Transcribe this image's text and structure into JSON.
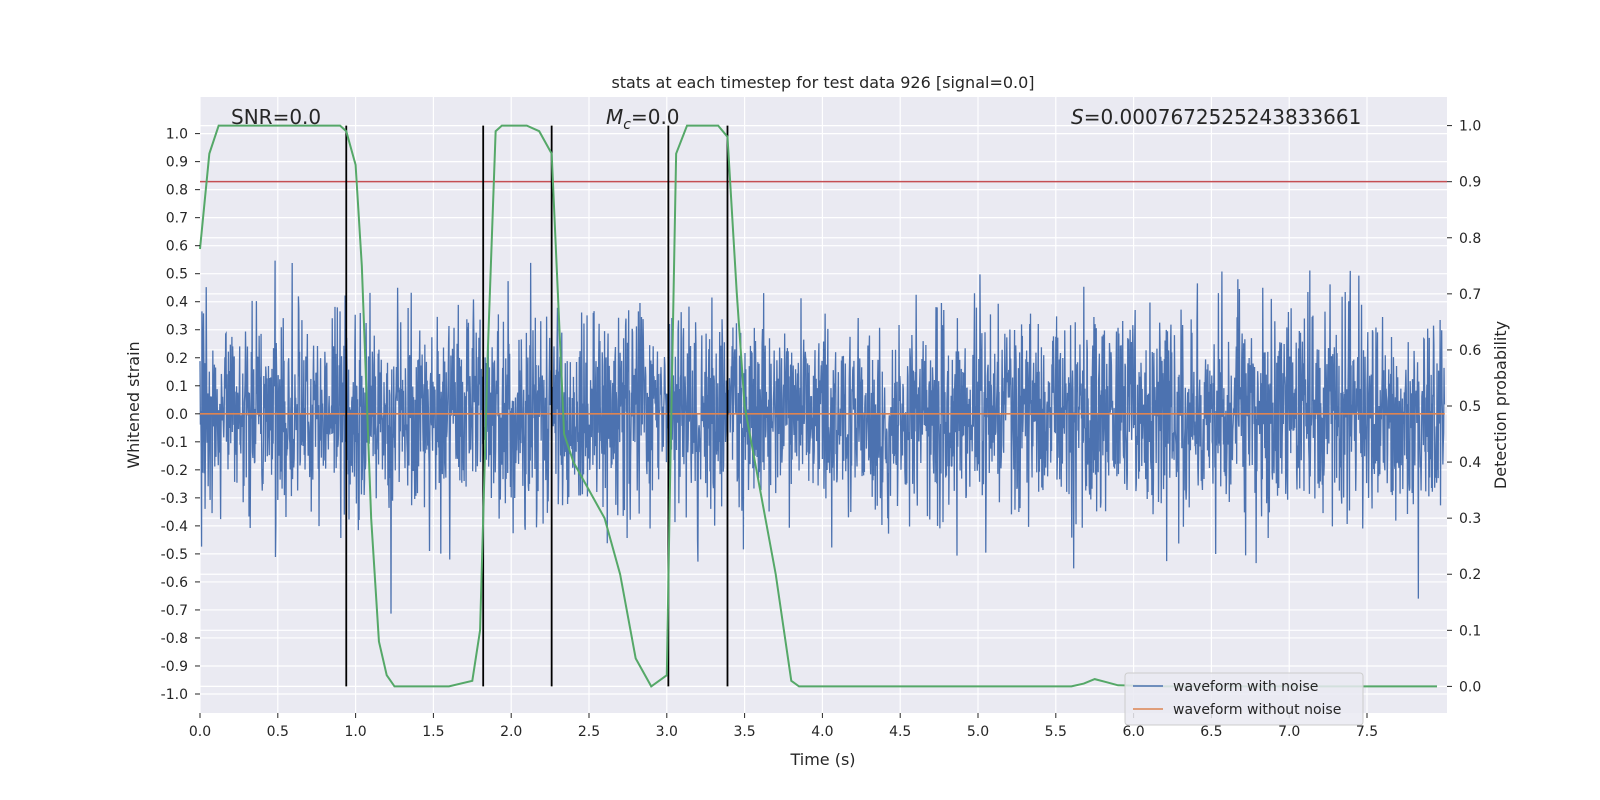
{
  "chart_data": {
    "type": "line",
    "title": "stats at each timestep for test data 926 [signal=0.0]",
    "xlabel": "Time (s)",
    "ylabel_left": "Whitened strain",
    "ylabel_right": "Detection probability",
    "xlim": [
      0.0,
      8.0
    ],
    "ylim_left": [
      -1.06,
      1.09
    ],
    "ylim_right": [
      -0.045,
      1.03
    ],
    "x_ticks": [
      "0.0",
      "0.5",
      "1.0",
      "1.5",
      "2.0",
      "2.5",
      "3.0",
      "3.5",
      "4.0",
      "4.5",
      "5.0",
      "5.5",
      "6.0",
      "6.5",
      "7.0",
      "7.5"
    ],
    "y_ticks_left": [
      "1.0",
      "0.9",
      "0.8",
      "0.7",
      "0.6",
      "0.5",
      "0.4",
      "0.3",
      "0.2",
      "0.1",
      "0.0",
      "-0.1",
      "-0.2",
      "-0.3",
      "-0.4",
      "-0.5",
      "-0.6",
      "-0.7",
      "-0.8",
      "-0.9",
      "-1.0"
    ],
    "y_ticks_right": [
      "1.0",
      "0.9",
      "0.8",
      "0.7",
      "0.6",
      "0.5",
      "0.4",
      "0.3",
      "0.2",
      "0.1",
      "0.0"
    ],
    "annotations": {
      "snr_label": "SNR",
      "snr_value": "=0.0",
      "mc_label": "M",
      "mc_sub": "c",
      "mc_value": "=0.0",
      "s_label": "S",
      "s_value": "=0.0007672525243833661"
    },
    "threshold_line": {
      "axis": "right",
      "value": 0.9,
      "color": "#c44e52"
    },
    "event_markers_x": [
      0.94,
      1.82,
      2.26,
      3.01,
      3.39
    ],
    "series": [
      {
        "name": "waveform with noise",
        "axis": "left",
        "color": "#4c72b0",
        "sample_rate": 400,
        "duration": 8.0,
        "noise_std": 0.18,
        "seed": 926
      },
      {
        "name": "waveform without noise",
        "axis": "left",
        "color": "#dd8452",
        "x": [
          0.0,
          8.0
        ],
        "y": [
          0.0,
          0.0
        ]
      },
      {
        "name": "detection probability",
        "axis": "right",
        "color": "#55a868",
        "x": [
          0.0,
          0.06,
          0.12,
          0.25,
          0.5,
          0.75,
          0.9,
          0.94,
          1.0,
          1.04,
          1.1,
          1.15,
          1.2,
          1.25,
          1.4,
          1.6,
          1.75,
          1.8,
          1.85,
          1.9,
          1.94,
          2.0,
          2.1,
          2.18,
          2.26,
          2.3,
          2.34,
          2.4,
          2.5,
          2.6,
          2.7,
          2.8,
          2.9,
          3.0,
          3.02,
          3.06,
          3.13,
          3.2,
          3.33,
          3.39,
          3.45,
          3.5,
          3.6,
          3.7,
          3.8,
          3.85,
          4.2,
          5.6,
          5.68,
          5.75,
          5.82,
          5.9,
          6.2,
          7.95
        ],
        "y": [
          0.78,
          0.95,
          1.0,
          1.0,
          1.0,
          1.0,
          1.0,
          0.99,
          0.93,
          0.75,
          0.3,
          0.08,
          0.02,
          0.0,
          0.0,
          0.0,
          0.01,
          0.1,
          0.6,
          0.99,
          1.0,
          1.0,
          1.0,
          0.99,
          0.95,
          0.7,
          0.45,
          0.4,
          0.35,
          0.3,
          0.2,
          0.05,
          0.0,
          0.02,
          0.35,
          0.95,
          1.0,
          1.0,
          1.0,
          0.98,
          0.7,
          0.5,
          0.35,
          0.2,
          0.01,
          0.0,
          0.0,
          0.0,
          0.005,
          0.013,
          0.008,
          0.002,
          0.0,
          0.0
        ]
      }
    ],
    "legend_position": "lower-right",
    "grid": true
  }
}
